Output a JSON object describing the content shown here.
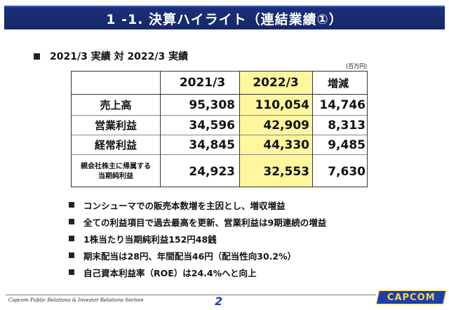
{
  "header": {
    "title": "1 -1.  決算ハイライト（連結業績①）"
  },
  "subheading": "2021/3 実績  対  2022/3 実績",
  "unit_note": "(百万円)",
  "colors": {
    "banner": "#1b2f7a",
    "highlight_column": "#fff69e",
    "page_number": "#1f3fb5",
    "logo_bg": "#1c3fa8",
    "logo_text": "#ffd23a"
  },
  "table": {
    "headers": [
      "",
      "2021/3",
      "2022/3",
      "増減"
    ],
    "rows": [
      {
        "label": "売上高",
        "label_line2": "",
        "v2021": "95,308",
        "v2022": "110,054",
        "change": "14,746"
      },
      {
        "label": "営業利益",
        "label_line2": "",
        "v2021": "34,596",
        "v2022": "42,909",
        "change": "8,313"
      },
      {
        "label": "経常利益",
        "label_line2": "",
        "v2021": "34,845",
        "v2022": "44,330",
        "change": "9,485"
      },
      {
        "label": "親会社株主に帰属する",
        "label_line2": "当期純利益",
        "v2021": "24,923",
        "v2022": "32,553",
        "change": "7,630"
      }
    ]
  },
  "bullets": [
    "コンシューマでの販売本数増を主因とし、増収増益",
    "全ての利益項目で過去最高を更新、営業利益は9期連続の増益",
    "1株当たり当期純利益152円48銭",
    "期末配当は28円、年間配当46円（配当性向30.2%）",
    "自己資本利益率（ROE）は24.4%へと向上"
  ],
  "footer": {
    "text": "Capcom Public Relations & Investor Relations Section",
    "page_number": "2",
    "logo": "CAPCOM"
  }
}
